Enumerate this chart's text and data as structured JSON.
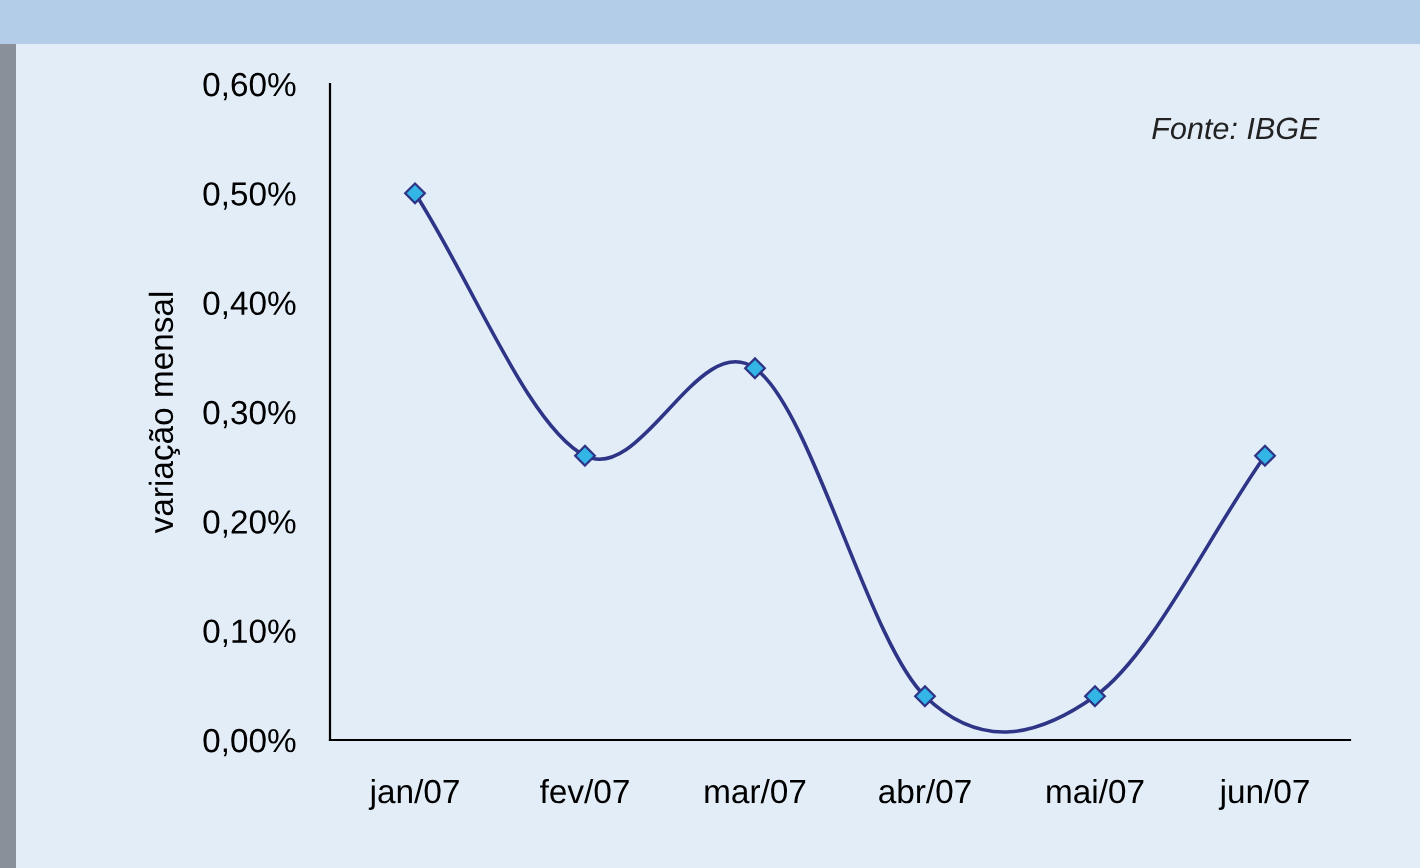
{
  "chart_data": {
    "type": "line",
    "ylabel": "variação mensal",
    "categories": [
      "jan/07",
      "fev/07",
      "mar/07",
      "abr/07",
      "mai/07",
      "jun/07"
    ],
    "series": [
      {
        "color": "#2e3586",
        "values": [
          0.5,
          0.26,
          0.34,
          0.04,
          0.04,
          0.26
        ]
      }
    ],
    "ylim": [
      0,
      0.6
    ],
    "yticks": [
      {
        "value": 0,
        "label": "0,00%"
      },
      {
        "value": 0.1,
        "label": "0,10%"
      },
      {
        "value": 0.2,
        "label": "0,20%"
      },
      {
        "value": 0.3,
        "label": "0,30%"
      },
      {
        "value": 0.4,
        "label": "0,40%"
      },
      {
        "value": 0.5,
        "label": "0,50%"
      },
      {
        "value": 0.6,
        "label": "0,60%"
      }
    ],
    "marker": "diamond",
    "line_style": "solid",
    "grid": false,
    "legend": false,
    "annotations": [
      "Fonte: IBGE"
    ]
  }
}
